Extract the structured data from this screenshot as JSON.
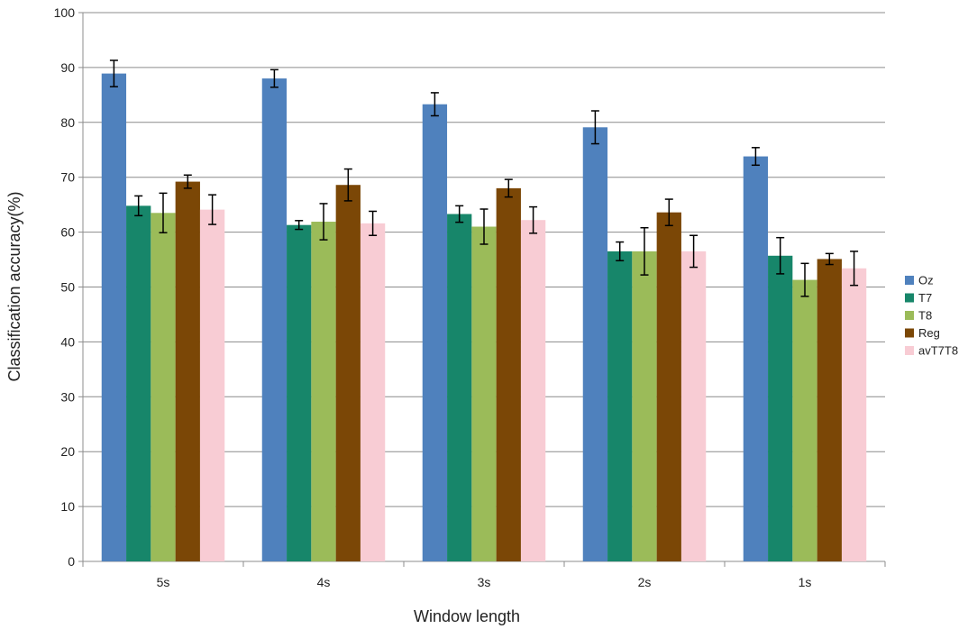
{
  "chart_data": {
    "type": "bar",
    "title": "",
    "xlabel": "Window length",
    "ylabel": "Classification accuracy(%)",
    "categories": [
      "5s",
      "4s",
      "3s",
      "2s",
      "1s"
    ],
    "ylim": [
      0,
      100
    ],
    "yticks": [
      0,
      10,
      20,
      30,
      40,
      50,
      60,
      70,
      80,
      90,
      100
    ],
    "grid": "horizontal",
    "legend_position": "right",
    "series": [
      {
        "name": "Oz",
        "color": "#4f81bd",
        "values": [
          88.9,
          88.0,
          83.3,
          79.1,
          73.8
        ],
        "errors": [
          2.4,
          1.6,
          2.1,
          3.0,
          1.6
        ]
      },
      {
        "name": "T7",
        "color": "#17866a",
        "values": [
          64.8,
          61.3,
          63.3,
          56.5,
          55.7
        ],
        "errors": [
          1.8,
          0.8,
          1.5,
          1.7,
          3.3
        ]
      },
      {
        "name": "T8",
        "color": "#9bbb59",
        "values": [
          63.5,
          61.9,
          61.0,
          56.5,
          51.3
        ],
        "errors": [
          3.6,
          3.3,
          3.2,
          4.3,
          3.0
        ]
      },
      {
        "name": "Reg",
        "color": "#7b4706",
        "values": [
          69.2,
          68.6,
          68.0,
          63.6,
          55.1
        ],
        "errors": [
          1.2,
          2.9,
          1.6,
          2.4,
          1.0
        ]
      },
      {
        "name": "avT7T8",
        "color": "#f8ccd4",
        "values": [
          64.1,
          61.6,
          62.2,
          56.5,
          53.4
        ],
        "errors": [
          2.7,
          2.2,
          2.4,
          2.9,
          3.1
        ]
      }
    ]
  }
}
